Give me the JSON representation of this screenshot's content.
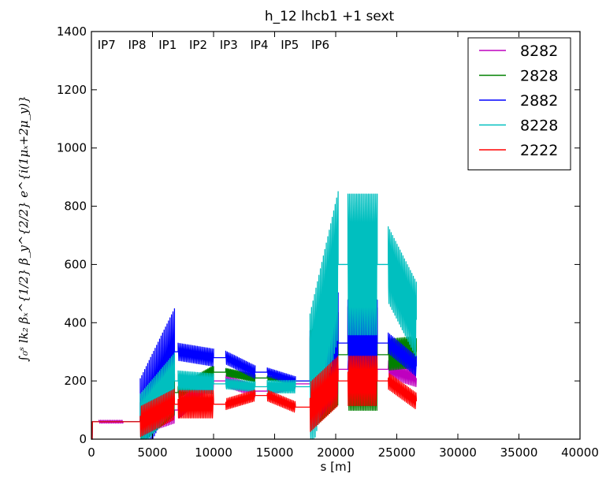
{
  "chart_data": {
    "type": "line",
    "title": "h_12 lhcb1 +1 sext",
    "xlabel": "s [m]",
    "ylabel": "∫₀ˢ lk₂ βₓ^{1/2} β_y^{2/2} e^{i(1μₓ+2μ_y)}",
    "xlim": [
      0,
      40000
    ],
    "ylim": [
      0,
      1400
    ],
    "xticks": [
      "0",
      "5000",
      "10000",
      "15000",
      "20000",
      "25000",
      "30000",
      "35000",
      "40000"
    ],
    "yticks": [
      "0",
      "200",
      "400",
      "600",
      "800",
      "1000",
      "1200",
      "1400"
    ],
    "grid": false,
    "legend_position": "top-right",
    "ip_labels": [
      {
        "label": "IP7",
        "s": 500
      },
      {
        "label": "IP8",
        "s": 3000
      },
      {
        "label": "IP1",
        "s": 5500
      },
      {
        "label": "IP2",
        "s": 8000
      },
      {
        "label": "IP3",
        "s": 10500
      },
      {
        "label": "IP4",
        "s": 13000
      },
      {
        "label": "IP5",
        "s": 15500
      },
      {
        "label": "IP6",
        "s": 18000
      }
    ],
    "arcs": [
      {
        "start": 600,
        "end": 2600
      },
      {
        "start": 4000,
        "end": 6800
      },
      {
        "start": 7100,
        "end": 10000
      },
      {
        "start": 11000,
        "end": 13400
      },
      {
        "start": 14400,
        "end": 16700
      },
      {
        "start": 17900,
        "end": 20200
      },
      {
        "start": 21000,
        "end": 23400
      },
      {
        "start": 24300,
        "end": 26600
      }
    ],
    "series": [
      {
        "name": "8282",
        "color": "#bf00bf",
        "levels": [
          60,
          60,
          100,
          200,
          165,
          190,
          240,
          240,
          210,
          150
        ],
        "amps": [
          25,
          10,
          90,
          60,
          40,
          30,
          60,
          60,
          60,
          40
        ]
      },
      {
        "name": "2828",
        "color": "#008000",
        "levels": [
          60,
          60,
          160,
          230,
          210,
          200,
          290,
          290,
          300,
          280
        ],
        "amps": [
          30,
          0,
          200,
          60,
          35,
          20,
          450,
          500,
          140,
          40
        ]
      },
      {
        "name": "2882",
        "color": "#0000ff",
        "levels": [
          60,
          60,
          300,
          280,
          230,
          200,
          330,
          330,
          250,
          190
        ],
        "amps": [
          30,
          0,
          300,
          60,
          45,
          30,
          350,
          300,
          70,
          20
        ]
      },
      {
        "name": "8228",
        "color": "#00bfbf",
        "levels": [
          60,
          60,
          200,
          190,
          180,
          180,
          600,
          600,
          410,
          230
        ],
        "amps": [
          30,
          0,
          220,
          80,
          40,
          50,
          580,
          560,
          300,
          80
        ]
      },
      {
        "name": "2222",
        "color": "#ff0000",
        "levels": [
          60,
          60,
          120,
          120,
          150,
          110,
          200,
          200,
          130,
          100
        ],
        "amps": [
          30,
          0,
          110,
          100,
          40,
          40,
          180,
          180,
          60,
          30
        ]
      }
    ]
  }
}
